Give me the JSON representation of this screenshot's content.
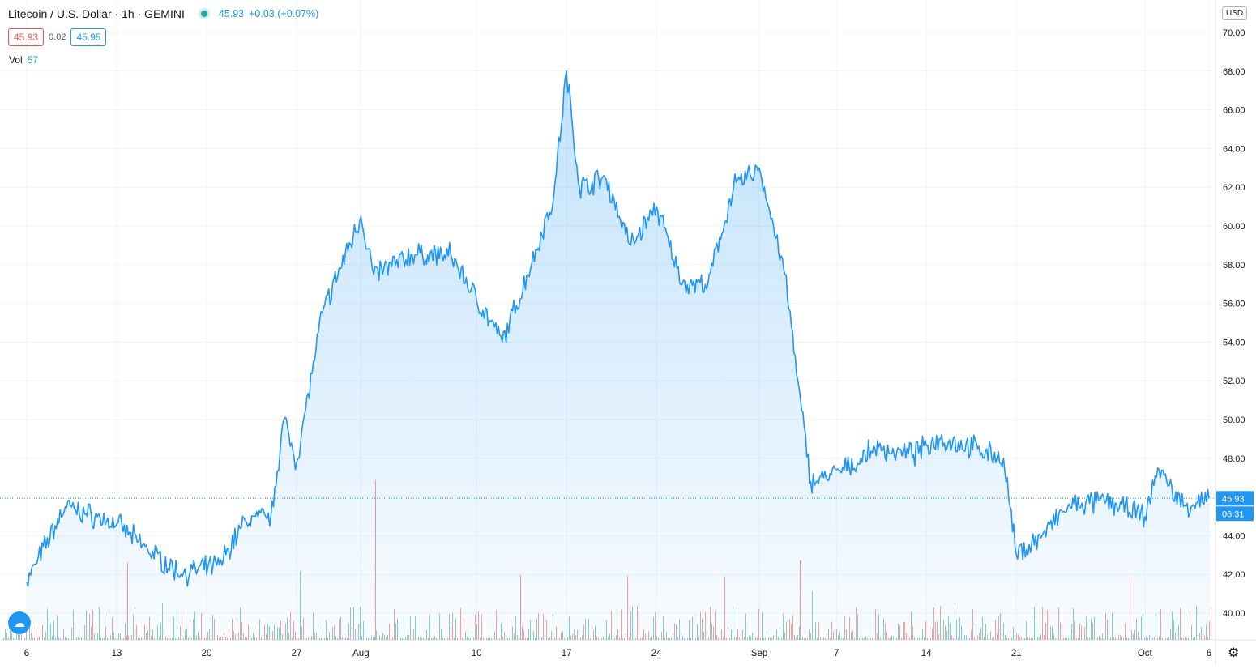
{
  "header": {
    "symbol": "Litecoin / U.S. Dollar · 1h · GEMINI",
    "last": "45.93",
    "change": "+0.03 (+0.07%)",
    "bid": "45.93",
    "spread": "0.02",
    "ask": "45.95",
    "vol_label": "Vol",
    "vol_value": "57",
    "currency": "USD"
  },
  "icons": {
    "cloud": "cloud-icon",
    "settings": "gear-icon",
    "status": "status-dot-icon"
  },
  "colors": {
    "line": "#2196f3",
    "up": "#26a69a",
    "down": "#ef5350"
  },
  "chart_data": {
    "type": "area",
    "ylim": [
      39,
      71
    ],
    "ytick_labels": [
      "40.00",
      "42.00",
      "44.00",
      "46.00",
      "48.00",
      "50.00",
      "52.00",
      "54.00",
      "56.00",
      "58.00",
      "60.00",
      "62.00",
      "64.00",
      "66.00",
      "68.00",
      "70.00"
    ],
    "xtick_labels": [
      "6",
      "13",
      "20",
      "27",
      "Aug",
      "10",
      "17",
      "24",
      "Sep",
      "7",
      "14",
      "21",
      "Oct",
      "6"
    ],
    "x_dates": [
      "Jul 6",
      "Jul 9",
      "Jul 13",
      "Jul 15",
      "Jul 18",
      "Jul 21",
      "Jul 23",
      "Jul 25",
      "Jul 26",
      "Jul 27",
      "Jul 29",
      "Aug 1",
      "Aug 2",
      "Aug 5",
      "Aug 8",
      "Aug 12",
      "Aug 14",
      "Aug 16",
      "Aug 17",
      "Aug 18",
      "Aug 20",
      "Aug 22",
      "Aug 24",
      "Aug 26",
      "Aug 28",
      "Aug 30",
      "Sep 1",
      "Sep 3",
      "Sep 4",
      "Sep 5",
      "Sep 6",
      "Sep 8",
      "Sep 10",
      "Sep 13",
      "Sep 15",
      "Sep 18",
      "Sep 20",
      "Sep 21",
      "Sep 23",
      "Sep 25",
      "Sep 28",
      "Oct 1",
      "Oct 2",
      "Oct 4",
      "Oct 6"
    ],
    "y": [
      41.6,
      45.5,
      44.6,
      43.5,
      42.0,
      42.5,
      44.8,
      45.0,
      50.0,
      47.8,
      55.5,
      60.5,
      57.5,
      58.5,
      58.5,
      54.0,
      57.5,
      61.5,
      68.0,
      62.0,
      62.5,
      59.0,
      61.0,
      57.0,
      57.0,
      62.0,
      63.0,
      57.5,
      52.0,
      46.8,
      47.0,
      47.5,
      48.5,
      48.2,
      49.0,
      48.5,
      48.0,
      43.0,
      44.0,
      45.5,
      45.8,
      45.0,
      47.5,
      45.5,
      45.93
    ],
    "last_value": "45.93",
    "countdown": "06:31"
  }
}
